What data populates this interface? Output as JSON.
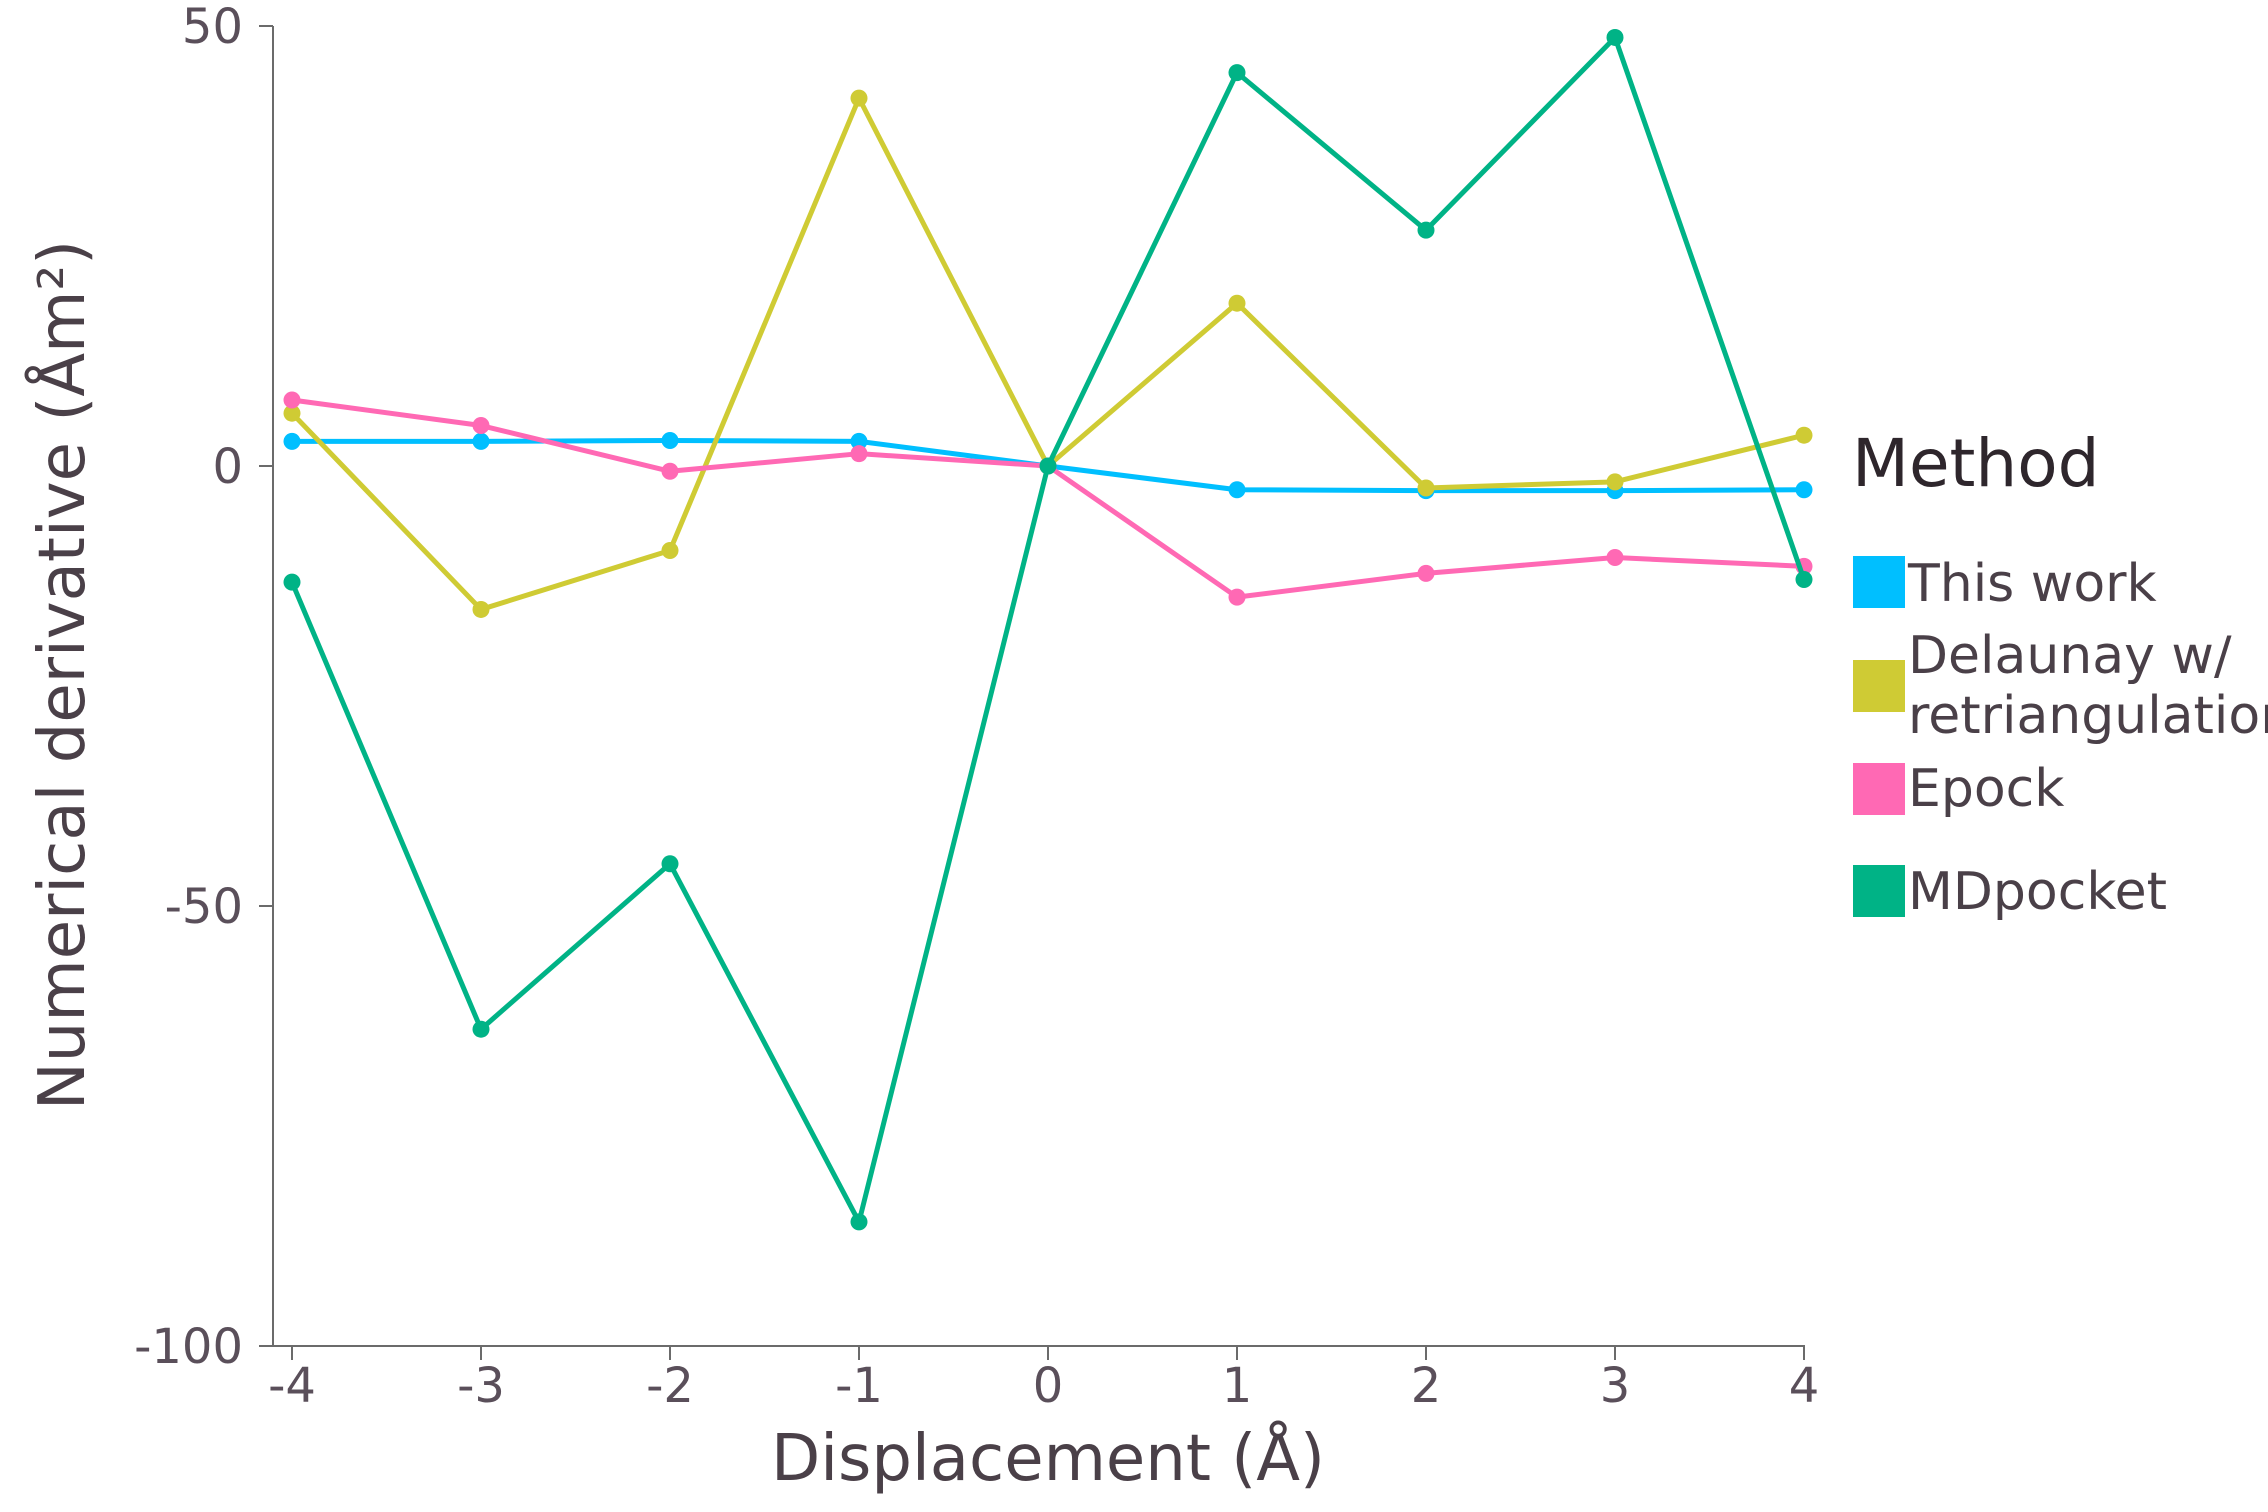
{
  "chart_data": {
    "type": "line",
    "xlabel": "Displacement (Å)",
    "ylabel": "Numerical derivative (Åm²)",
    "xlim": [
      -4,
      4
    ],
    "ylim": [
      -100,
      50
    ],
    "x": [
      -4,
      -3,
      -2,
      -1,
      0,
      1,
      2,
      3,
      4
    ],
    "x_ticks": [
      "-4",
      "-3",
      "-2",
      "-1",
      "0",
      "1",
      "2",
      "3",
      "4"
    ],
    "y_ticks": [
      {
        "value": 50,
        "label": "50"
      },
      {
        "value": 0,
        "label": "0"
      },
      {
        "value": -50,
        "label": "-50"
      },
      {
        "value": -100,
        "label": "-100"
      }
    ],
    "grid": false,
    "legend": {
      "title": "Method",
      "position": "right",
      "entries": [
        "This work",
        "Delaunay w/",
        "retriangulation",
        "Epock",
        "MDpocket"
      ]
    },
    "series": [
      {
        "name": "This work",
        "color": "#00bfff",
        "values": [
          2.8,
          2.8,
          2.9,
          2.8,
          0,
          -2.7,
          -2.8,
          -2.8,
          -2.7
        ]
      },
      {
        "name": "Delaunay w/ retriangulation",
        "color": "#cfcb34",
        "values": [
          6.0,
          -16.3,
          -9.6,
          41.8,
          0,
          18.5,
          -2.5,
          -1.8,
          3.5
        ]
      },
      {
        "name": "Epock",
        "color": "#ff69b4",
        "values": [
          7.5,
          4.6,
          -0.6,
          1.4,
          0,
          -14.9,
          -12.2,
          -10.4,
          -11.4
        ]
      },
      {
        "name": "MDpocket",
        "color": "#00b386",
        "values": [
          -13.2,
          -64.0,
          -45.2,
          -85.9,
          0,
          44.7,
          26.8,
          48.7,
          -12.9
        ]
      }
    ]
  }
}
